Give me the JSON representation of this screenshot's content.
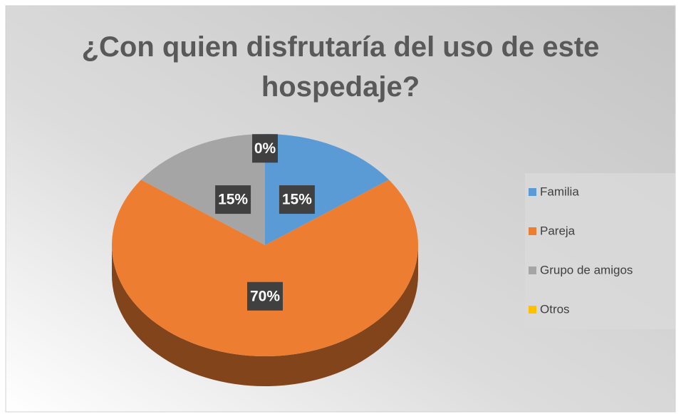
{
  "chart_data": {
    "type": "pie",
    "title": "¿Con quien disfrutaría del uso de este hospedaje?",
    "categories": [
      "Familia",
      "Pareja",
      "Grupo de amigos",
      "Otros"
    ],
    "values": [
      15,
      70,
      15,
      0
    ],
    "value_labels": [
      "15%",
      "70%",
      "15%",
      "0%"
    ],
    "colors": [
      "#5b9bd5",
      "#ed7d31",
      "#a5a5a5",
      "#ffc000"
    ],
    "legend": "right"
  }
}
